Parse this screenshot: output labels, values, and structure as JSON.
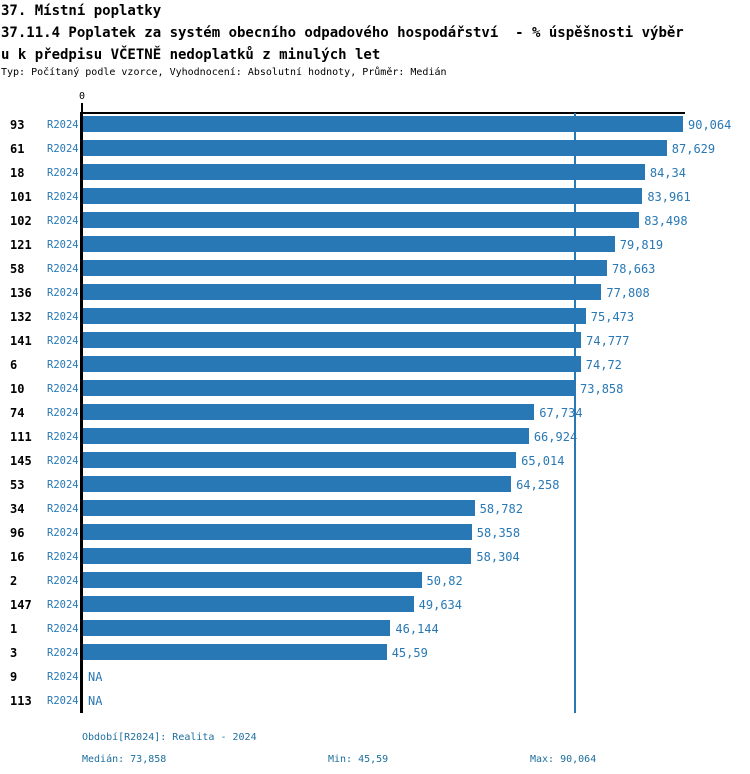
{
  "header": {
    "line1": "37. Místní poplatky",
    "line2": "37.11.4 Poplatek za systém obecního odpadového hospodářství  - % úspěšnosti výběr",
    "line3": "u k předpisu VČETNĚ nedoplatků z minulých let",
    "meta": "Typ: Počítaný podle vzorce, Vyhodnocení: Absolutní hodnoty, Průměr: Medián"
  },
  "colors": {
    "accent": "#2878b5",
    "footer_text": "#1d6f9e",
    "axis": "#000000"
  },
  "chart_data": {
    "type": "bar",
    "orientation": "horizontal",
    "title": "37.11.4 Poplatek za systém obecního odpadového hospodářství - % úspěšnosti výběru k předpisu VČETNĚ nedoplatků z minulých let",
    "series_label": "R2024",
    "categories": [
      "93",
      "61",
      "18",
      "101",
      "102",
      "121",
      "58",
      "136",
      "132",
      "141",
      "6",
      "10",
      "74",
      "111",
      "145",
      "53",
      "34",
      "96",
      "16",
      "2",
      "147",
      "1",
      "3",
      "9",
      "113"
    ],
    "values": [
      90.064,
      87.629,
      84.34,
      83.961,
      83.498,
      79.819,
      78.663,
      77.808,
      75.473,
      74.777,
      74.72,
      73.858,
      67.734,
      66.924,
      65.014,
      64.258,
      58.782,
      58.358,
      58.304,
      50.82,
      49.634,
      46.144,
      45.59,
      null,
      null
    ],
    "value_labels": [
      "90,064",
      "87,629",
      "84,34",
      "83,961",
      "83,498",
      "79,819",
      "78,663",
      "77,808",
      "75,473",
      "74,777",
      "74,72",
      "73,858",
      "67,734",
      "66,924",
      "65,014",
      "64,258",
      "58,782",
      "58,358",
      "58,304",
      "50,82",
      "49,634",
      "46,144",
      "45,59",
      "NA",
      "NA"
    ],
    "na_label": "NA",
    "x_zero_label": "0",
    "xlim": [
      0,
      90.064
    ],
    "median": 73.858,
    "min": 45.59,
    "max": 90.064,
    "grid": false,
    "legend": "none",
    "bar_color": "#2878b5"
  },
  "footer": {
    "period": "Období[R2024]: Realita - 2024",
    "median": "Medián: 73,858",
    "min": "Min: 45,59",
    "max": "Max: 90,064"
  }
}
